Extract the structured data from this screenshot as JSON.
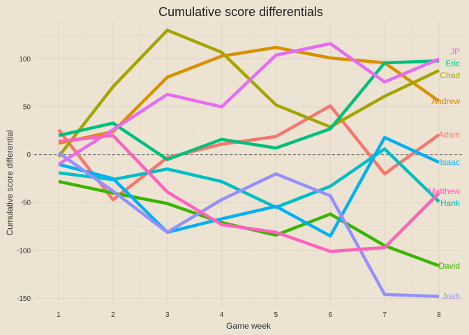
{
  "chart_data": {
    "type": "line",
    "title": "Cumulative score differentials",
    "xlabel": "Game week",
    "ylabel": "Cumulative score differential",
    "x": [
      1,
      2,
      3,
      4,
      5,
      6,
      7,
      8
    ],
    "xlim": [
      0.55,
      8.45
    ],
    "ylim": [
      -157,
      139
    ],
    "x_ticks": [
      1,
      2,
      3,
      4,
      5,
      6,
      7,
      8
    ],
    "y_ticks": [
      -150,
      -100,
      -50,
      0,
      50,
      100
    ],
    "grid": true,
    "zero_line": 0,
    "legend": "direct labels at right",
    "series": [
      {
        "name": "Adam",
        "color": "#F8766D",
        "values": [
          26,
          -47,
          -3,
          11,
          19,
          51,
          -20,
          21
        ]
      },
      {
        "name": "Andrew",
        "color": "#D89000",
        "values": [
          12,
          24,
          81,
          103,
          112,
          101,
          96,
          56
        ]
      },
      {
        "name": "Chad",
        "color": "#A3A500",
        "values": [
          -2,
          71,
          130,
          107,
          52,
          29,
          61,
          88
        ]
      },
      {
        "name": "David",
        "color": "#39B600",
        "values": [
          -28,
          -40,
          -51,
          -71,
          -84,
          -62,
          -95,
          -116
        ]
      },
      {
        "name": "Eric",
        "color": "#00BF7D",
        "values": [
          20,
          33,
          -5,
          16,
          7,
          27,
          96,
          98
        ]
      },
      {
        "name": "Hank",
        "color": "#00BFC4",
        "values": [
          -19,
          -26,
          -15,
          -28,
          -55,
          -33,
          6,
          -49
        ]
      },
      {
        "name": "Isaac",
        "color": "#00B0F6",
        "values": [
          -10,
          -25,
          -81,
          -67,
          -54,
          -85,
          18,
          -8
        ]
      },
      {
        "name": "Josh",
        "color": "#9590FF",
        "values": [
          2,
          -38,
          -81,
          -47,
          -20,
          -43,
          -146,
          -148
        ]
      },
      {
        "name": "JP",
        "color": "#E76BF3",
        "values": [
          -10,
          26,
          63,
          50,
          104,
          116,
          76,
          100
        ]
      },
      {
        "name": "Matthew",
        "color": "#FF62BC",
        "values": [
          14,
          20,
          -39,
          -73,
          -81,
          -101,
          -97,
          -40
        ]
      }
    ]
  }
}
